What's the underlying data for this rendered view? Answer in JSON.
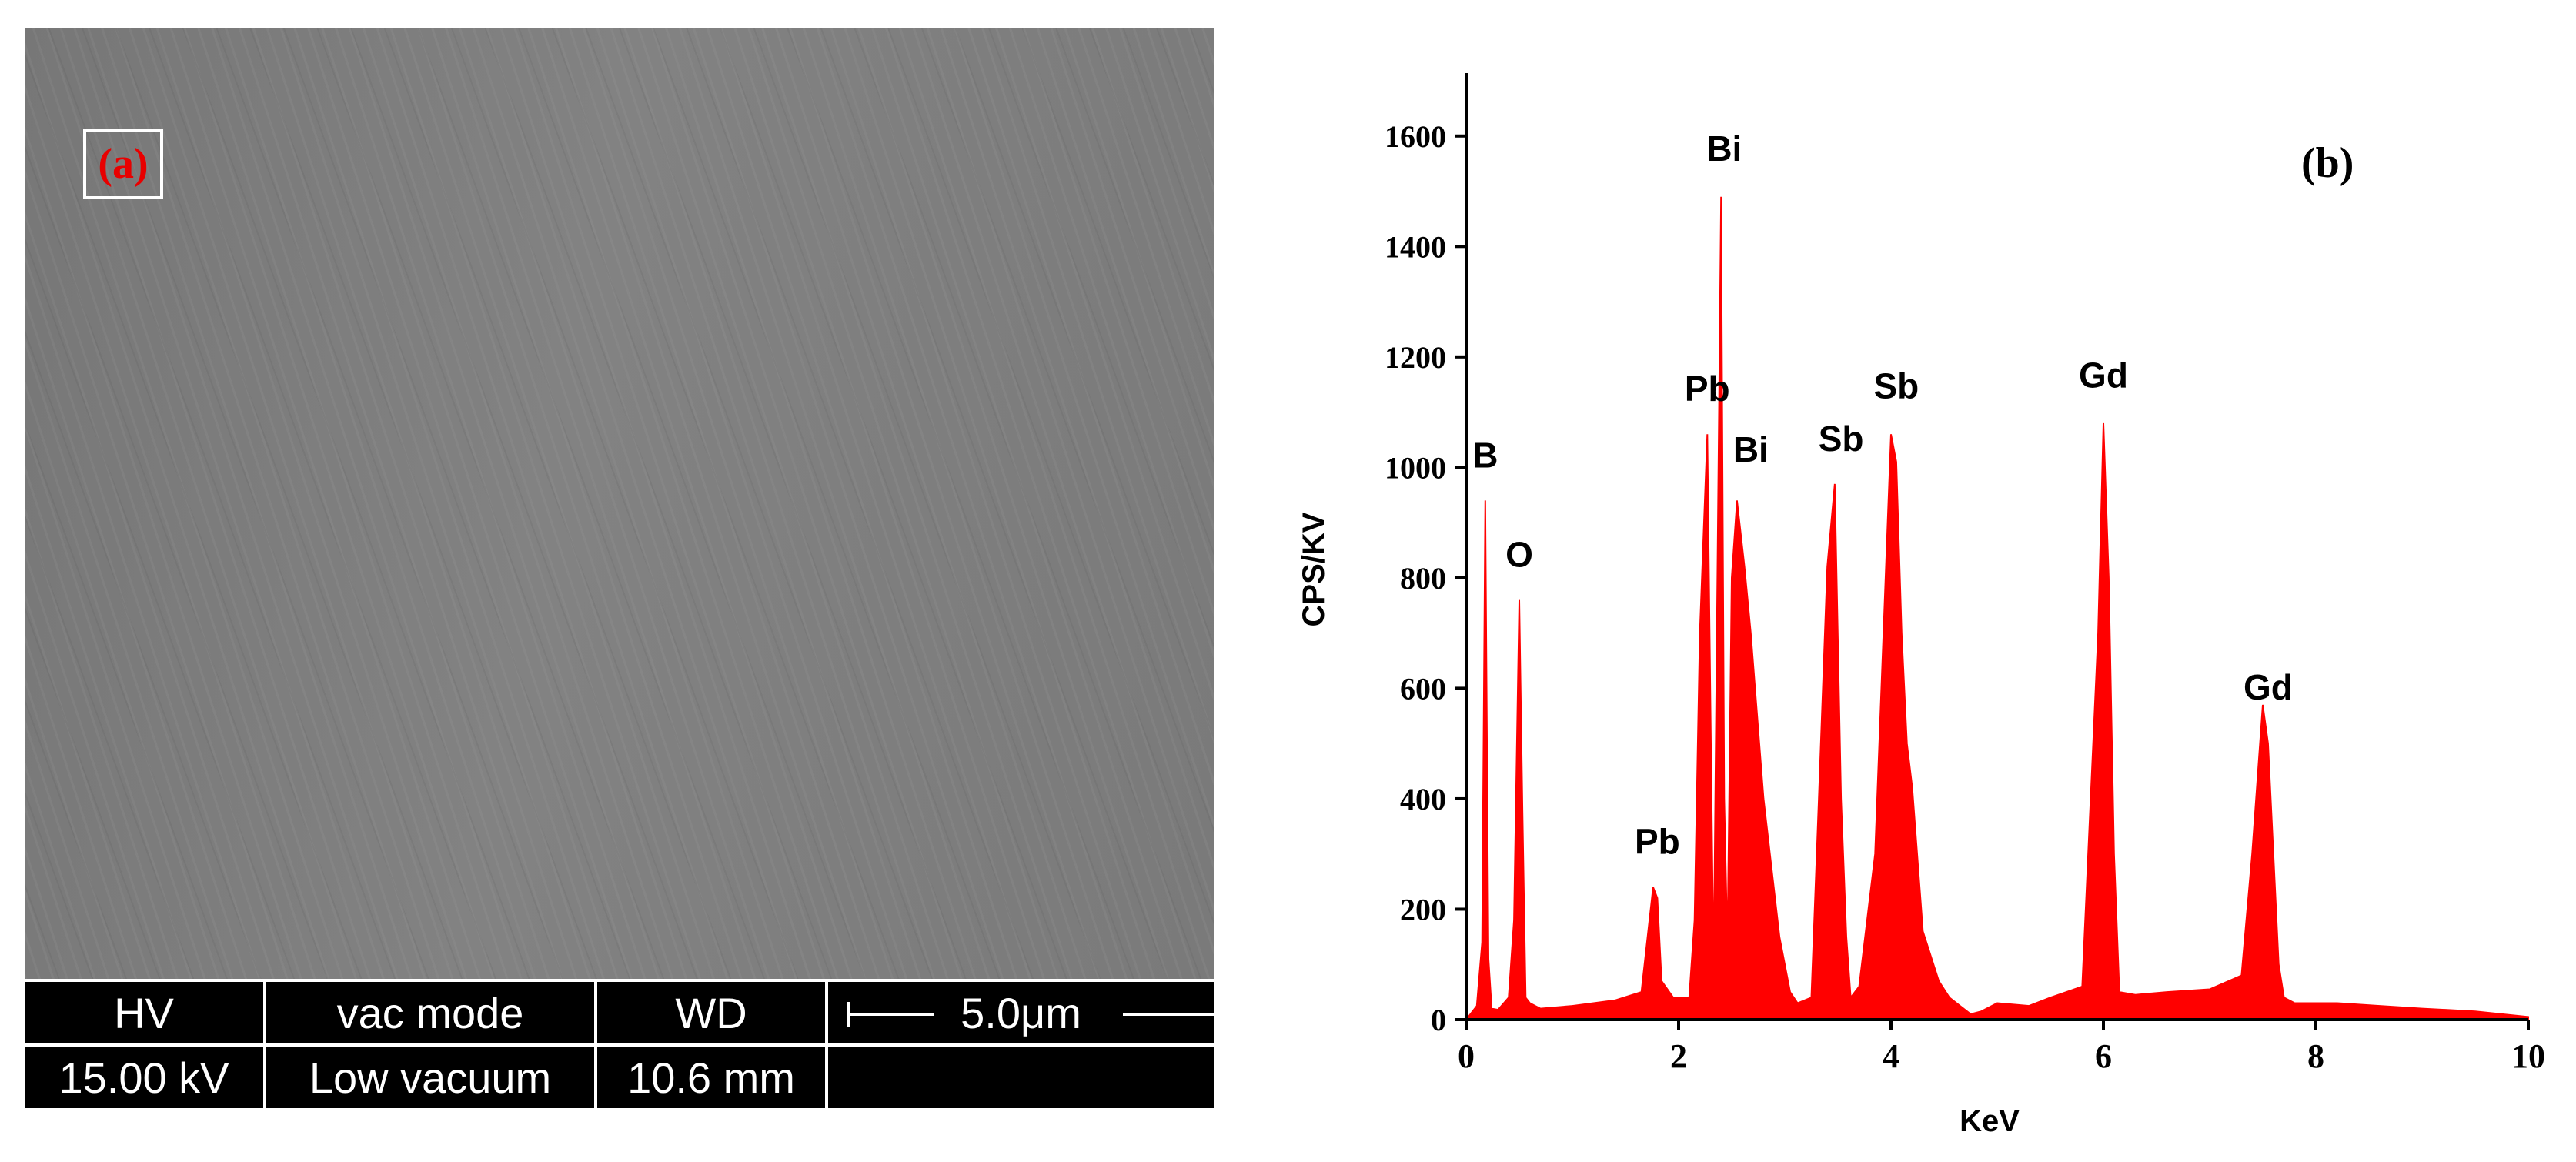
{
  "panel_a": {
    "label": "(a)",
    "databar": {
      "hv_label": "HV",
      "hv_value": "15.00 kV",
      "vac_label": "vac mode",
      "vac_value": "Low vacuum",
      "wd_label": "WD",
      "wd_value": "10.6 mm",
      "scale_label": "5.0μm"
    }
  },
  "chart_data": {
    "type": "area",
    "panel_label": "(b)",
    "title": "",
    "xlabel": "KeV",
    "ylabel": "CPS/KV",
    "xlim": [
      0,
      10
    ],
    "ylim": [
      0,
      1700
    ],
    "xticks": [
      0,
      2,
      4,
      6,
      8,
      10
    ],
    "yticks": [
      0,
      200,
      400,
      600,
      800,
      1000,
      1200,
      1400,
      1600
    ],
    "grid": false,
    "legend": "none",
    "color": "#ff0000",
    "series": [
      {
        "x": [
          0,
          0.1,
          0.15,
          0.18,
          0.21,
          0.24,
          0.3,
          0.4,
          0.45,
          0.5,
          0.53,
          0.56,
          0.6,
          0.65,
          0.7,
          1.0,
          1.4,
          1.65,
          1.76,
          1.8,
          1.84,
          1.95,
          2.1,
          2.15,
          2.2,
          2.27,
          2.33,
          2.36,
          2.4,
          2.43,
          2.46,
          2.5,
          2.55,
          2.62,
          2.68,
          2.8,
          2.95,
          3.05,
          3.12,
          3.25,
          3.32,
          3.4,
          3.47,
          3.53,
          3.58,
          3.62,
          3.7,
          3.85,
          4.0,
          4.05,
          4.1,
          4.15,
          4.2,
          4.3,
          4.45,
          4.55,
          4.75,
          4.85,
          5.0,
          5.3,
          5.5,
          5.8,
          5.95,
          6.0,
          6.05,
          6.1,
          6.15,
          6.3,
          6.6,
          7.0,
          7.3,
          7.4,
          7.5,
          7.55,
          7.6,
          7.65,
          7.7,
          7.8,
          8.2,
          8.6,
          9.0,
          9.5,
          10.0
        ],
        "y": [
          0,
          25,
          140,
          940,
          110,
          20,
          18,
          40,
          180,
          760,
          380,
          40,
          30,
          25,
          20,
          25,
          35,
          50,
          240,
          220,
          70,
          40,
          40,
          180,
          700,
          1060,
          80,
          700,
          1490,
          400,
          130,
          800,
          940,
          820,
          700,
          400,
          150,
          50,
          30,
          40,
          400,
          820,
          970,
          400,
          150,
          40,
          60,
          300,
          1060,
          1010,
          700,
          500,
          420,
          160,
          70,
          40,
          10,
          15,
          30,
          25,
          40,
          60,
          700,
          1080,
          800,
          300,
          50,
          45,
          50,
          55,
          80,
          300,
          570,
          500,
          300,
          100,
          40,
          30,
          30,
          25,
          20,
          15,
          5
        ]
      }
    ],
    "annotations": [
      {
        "text": "B",
        "x": 0.18,
        "y": 1000
      },
      {
        "text": "O",
        "x": 0.5,
        "y": 820
      },
      {
        "text": "Pb",
        "x": 1.8,
        "y": 300
      },
      {
        "text": "Pb",
        "x": 2.27,
        "y": 1120
      },
      {
        "text": "Bi",
        "x": 2.43,
        "y": 1555
      },
      {
        "text": "Bi",
        "x": 2.68,
        "y": 1010
      },
      {
        "text": "Sb",
        "x": 3.53,
        "y": 1030
      },
      {
        "text": "Sb",
        "x": 4.05,
        "y": 1125
      },
      {
        "text": "Gd",
        "x": 6.0,
        "y": 1145
      },
      {
        "text": "Gd",
        "x": 7.55,
        "y": 580
      }
    ]
  }
}
